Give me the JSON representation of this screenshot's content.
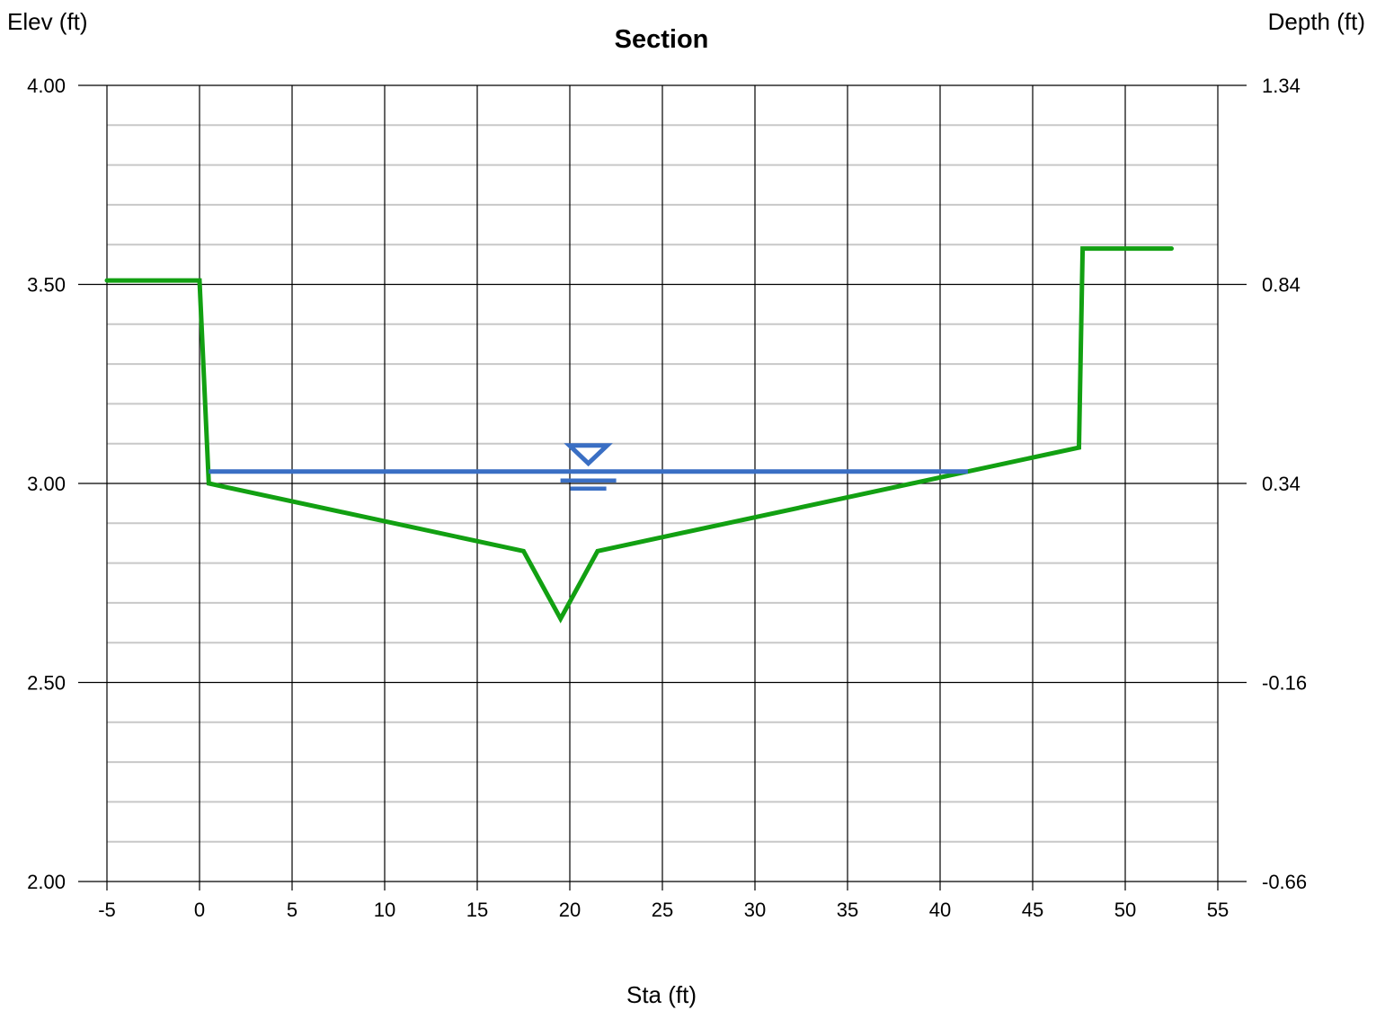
{
  "chart_data": {
    "type": "line",
    "title": "Section",
    "xlabel": "Sta (ft)",
    "ylabel": "Elev (ft)",
    "y2label": "Depth (ft)",
    "xlim": [
      -5,
      55
    ],
    "ylim": [
      2.0,
      4.0
    ],
    "x_ticks": [
      "-5",
      "0",
      "5",
      "10",
      "15",
      "20",
      "25",
      "30",
      "35",
      "40",
      "45",
      "50",
      "55"
    ],
    "y_ticks": [
      "2.00",
      "2.50",
      "3.00",
      "3.50",
      "4.00"
    ],
    "y2_ticks": [
      "-0.66",
      "-0.16",
      "0.34",
      "0.84",
      "1.34"
    ],
    "grid": true,
    "series": [
      {
        "role": "ground",
        "color": "#12a012",
        "x": [
          -5,
          0,
          0.5,
          17.5,
          19.5,
          21.5,
          47.5,
          47.7,
          52.5
        ],
        "y": [
          3.51,
          3.51,
          3.0,
          2.83,
          2.66,
          2.83,
          3.09,
          3.59,
          3.59
        ]
      },
      {
        "role": "water-surface",
        "color": "#3a6fc4",
        "x": [
          0.5,
          41.5
        ],
        "y": [
          3.03,
          3.03
        ],
        "marker_x": 21
      }
    ]
  }
}
